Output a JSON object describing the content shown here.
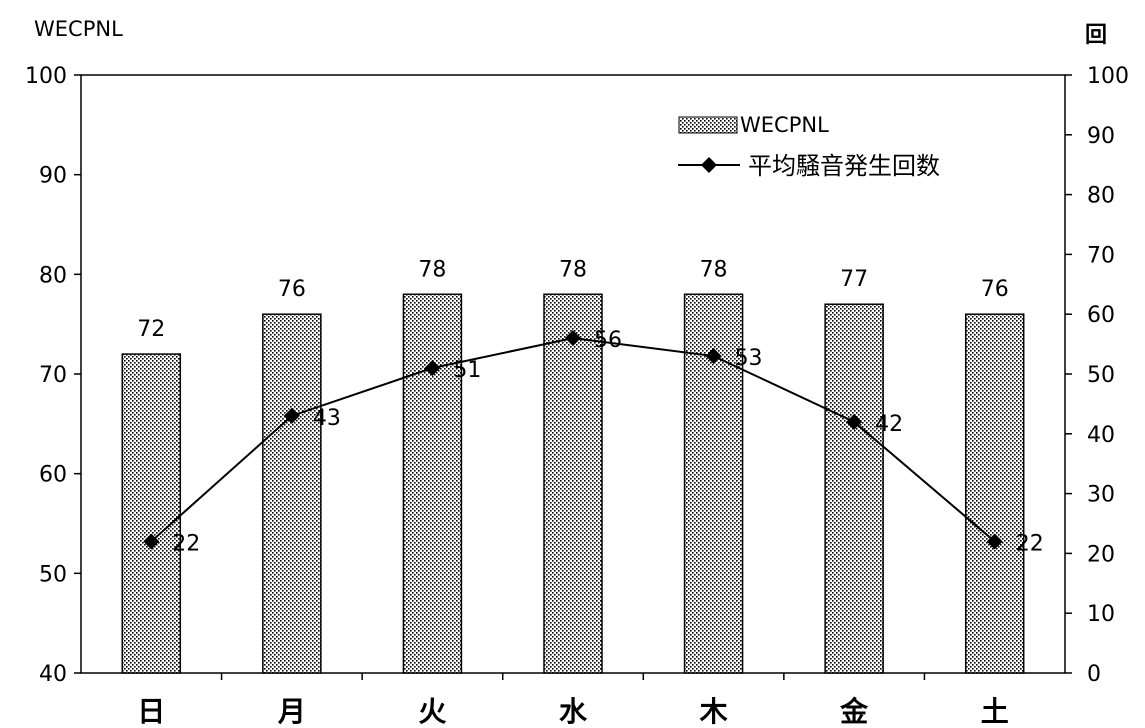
{
  "chart_data": {
    "type": "bar",
    "categories": [
      "日",
      "月",
      "火",
      "水",
      "木",
      "金",
      "土"
    ],
    "left_axis": {
      "label": "WECPNL",
      "ylim": [
        40,
        100
      ],
      "ticks": [
        40,
        50,
        60,
        70,
        80,
        90,
        100
      ]
    },
    "right_axis": {
      "label": "回",
      "ylim": [
        0,
        100
      ],
      "ticks": [
        0,
        10,
        20,
        30,
        40,
        50,
        60,
        70,
        80,
        90,
        100
      ]
    },
    "series": [
      {
        "name": "WECPNL",
        "type": "bar",
        "axis": "left",
        "pattern": "dotted",
        "values": [
          72,
          76,
          78,
          78,
          78,
          77,
          76
        ]
      },
      {
        "name": "平均騒音発生回数",
        "type": "line",
        "axis": "right",
        "marker": "diamond",
        "color": "#000000",
        "values": [
          22,
          43,
          51,
          56,
          53,
          42,
          22
        ]
      }
    ],
    "data_labels": true,
    "grid": false,
    "legend_position": "top-right"
  }
}
